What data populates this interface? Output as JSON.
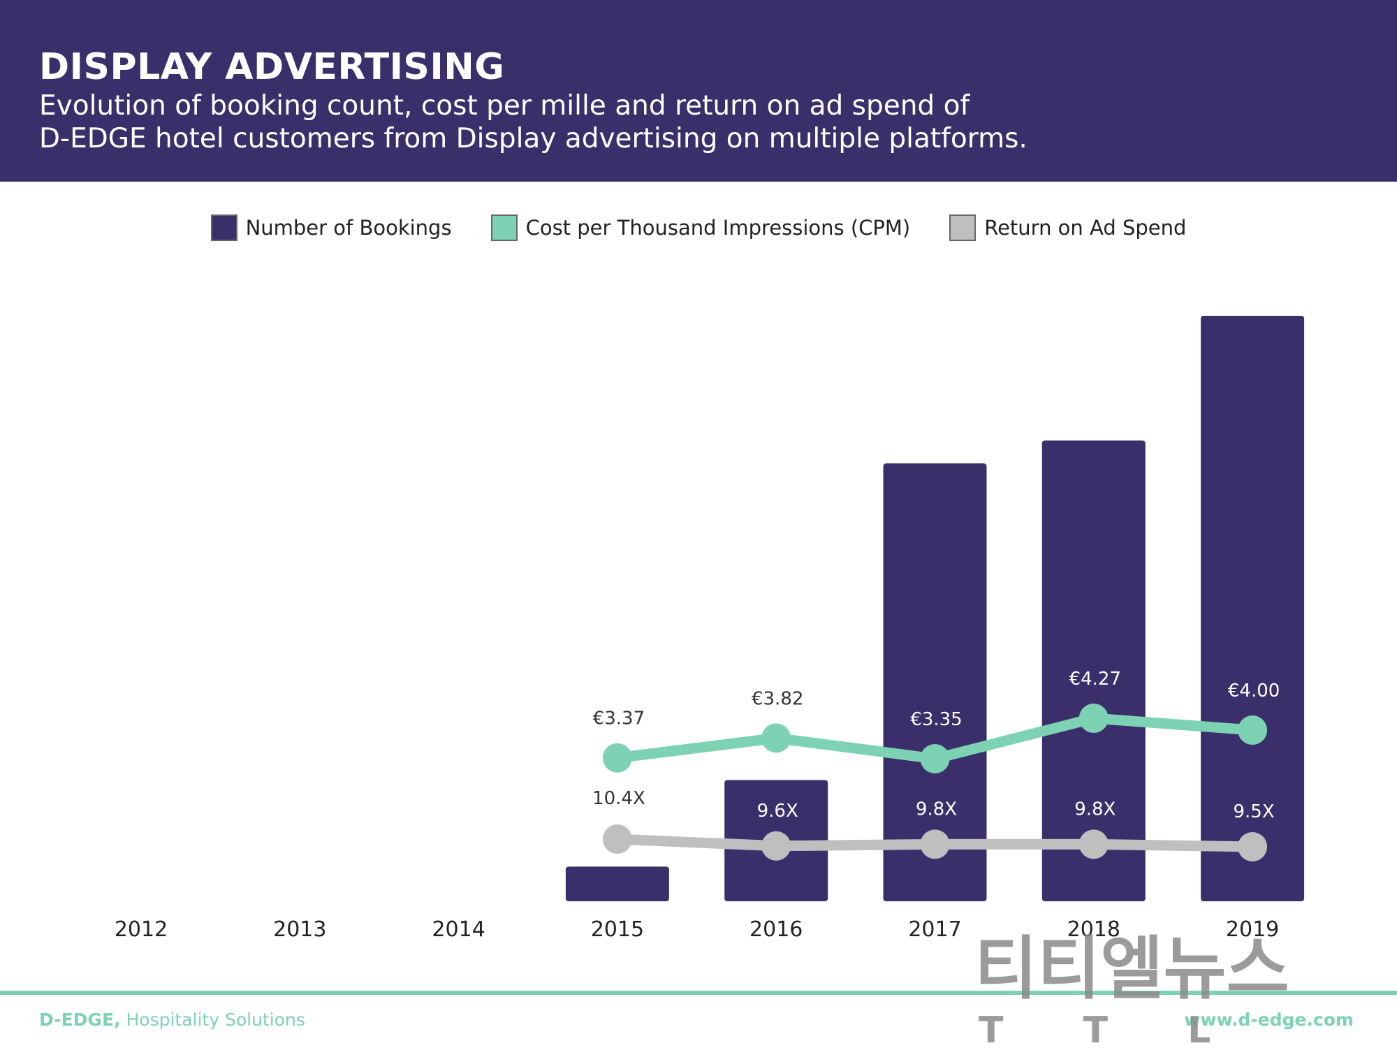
{
  "header": {
    "title": "DISPLAY ADVERTISING",
    "subtitle_line1": "Evolution of booking count, cost per mille and return on ad spend of",
    "subtitle_line2": "D-EDGE hotel customers from Display advertising on multiple platforms."
  },
  "legend": [
    {
      "label": "Number of Bookings",
      "color": "#3b2f6b"
    },
    {
      "label": "Cost per Thousand Impressions (CPM)",
      "color": "#7cd2b3"
    },
    {
      "label": "Return on Ad Spend",
      "color": "#bfbfbf"
    }
  ],
  "chart_data": {
    "type": "bar",
    "categories": [
      "2012",
      "2013",
      "2014",
      "2015",
      "2016",
      "2017",
      "2018",
      "2019"
    ],
    "series": [
      {
        "name": "Number of Bookings",
        "type": "bar",
        "color": "#3b2f6b",
        "values": [
          0,
          0,
          0,
          50,
          175,
          632,
          665,
          845
        ]
      },
      {
        "name": "Cost per Thousand Impressions (CPM)",
        "type": "line",
        "color": "#7cd2b3",
        "values": [
          null,
          null,
          null,
          3.37,
          3.82,
          3.35,
          4.27,
          4.0
        ],
        "labels": [
          null,
          null,
          null,
          "€3.37",
          "€3.82",
          "€3.35",
          "€4.27",
          "€4.00"
        ]
      },
      {
        "name": "Return on Ad Spend",
        "type": "line",
        "color": "#bfbfbf",
        "values": [
          null,
          null,
          null,
          10.4,
          9.6,
          9.8,
          9.8,
          9.5
        ],
        "labels": [
          null,
          null,
          null,
          "10.4X",
          "9.6X",
          "9.8X",
          "9.8X",
          "9.5X"
        ]
      }
    ],
    "bars_ylim": [
      0,
      850
    ],
    "legend_position": "top-center",
    "grid": false
  },
  "footer": {
    "brand": "D-EDGE,",
    "tagline": "Hospitality Solutions",
    "url": "www.d-edge.com"
  },
  "watermark": {
    "text_top": "티티엘뉴스",
    "text_bottom": "T T L"
  }
}
